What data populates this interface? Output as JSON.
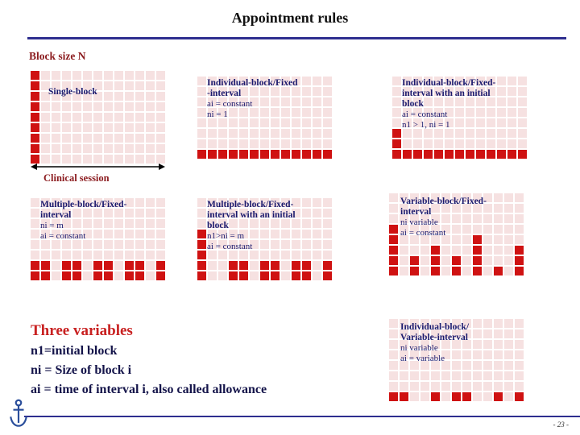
{
  "slide": {
    "title": "Appointment rules",
    "block_size_label": "Block size N",
    "clinical_session_label": "Clinical session",
    "page_number": "- 23 -"
  },
  "colors": {
    "navy": "#1a1a6e",
    "maroon": "#8c1d20",
    "block_red": "#cf1212",
    "slot_pink": "#f6e1e1",
    "heading_red": "#c82121",
    "rule_navy": "#2e2e8f"
  },
  "icons": {
    "logo": "anchor-icon"
  },
  "legend": {
    "heading": "Three variables",
    "lines": [
      "n1=initial block",
      "ni = Size of block i",
      "ai = time of interval i, also called allowance"
    ]
  },
  "panels": [
    {
      "id": "single-block",
      "title_lines": [
        "Single-block"
      ],
      "sub_lines": [],
      "grid": {
        "cols": 13,
        "rows": 9,
        "filled": [
          [
            0,
            0
          ],
          [
            0,
            1
          ],
          [
            0,
            2
          ],
          [
            0,
            3
          ],
          [
            0,
            4
          ],
          [
            0,
            5
          ],
          [
            0,
            6
          ],
          [
            0,
            7
          ],
          [
            0,
            8
          ]
        ]
      }
    },
    {
      "id": "individual-block-fixed-interval",
      "title_lines": [
        "Individual-block/Fixed",
        "-interval"
      ],
      "sub_lines": [
        "ai = constant",
        "ni = 1"
      ],
      "grid": {
        "cols": 13,
        "rows": 8,
        "filled": [
          [
            0,
            7
          ],
          [
            1,
            7
          ],
          [
            2,
            7
          ],
          [
            3,
            7
          ],
          [
            4,
            7
          ],
          [
            5,
            7
          ],
          [
            6,
            7
          ],
          [
            7,
            7
          ],
          [
            8,
            7
          ],
          [
            9,
            7
          ],
          [
            10,
            7
          ],
          [
            11,
            7
          ],
          [
            12,
            7
          ]
        ]
      }
    },
    {
      "id": "individual-block-fixed-interval-initial-block",
      "title_lines": [
        "Individual-block/Fixed-",
        "interval with an initial",
        "block"
      ],
      "sub_lines": [
        "ai = constant",
        "n1 > 1, ni = 1"
      ],
      "grid": {
        "cols": 13,
        "rows": 8,
        "filled": [
          [
            0,
            5
          ],
          [
            0,
            6
          ],
          [
            0,
            7
          ],
          [
            1,
            7
          ],
          [
            2,
            7
          ],
          [
            3,
            7
          ],
          [
            4,
            7
          ],
          [
            5,
            7
          ],
          [
            6,
            7
          ],
          [
            7,
            7
          ],
          [
            8,
            7
          ],
          [
            9,
            7
          ],
          [
            10,
            7
          ],
          [
            11,
            7
          ],
          [
            12,
            7
          ]
        ]
      }
    },
    {
      "id": "multiple-block-fixed-interval",
      "title_lines": [
        "Multiple-block/Fixed-",
        "interval"
      ],
      "sub_lines": [
        "ni = m",
        "ai = constant"
      ],
      "grid": {
        "cols": 13,
        "rows": 8,
        "filled": [
          [
            0,
            6
          ],
          [
            1,
            6
          ],
          [
            0,
            7
          ],
          [
            1,
            7
          ],
          [
            3,
            6
          ],
          [
            4,
            6
          ],
          [
            3,
            7
          ],
          [
            4,
            7
          ],
          [
            6,
            6
          ],
          [
            7,
            6
          ],
          [
            6,
            7
          ],
          [
            7,
            7
          ],
          [
            9,
            6
          ],
          [
            10,
            6
          ],
          [
            9,
            7
          ],
          [
            10,
            7
          ],
          [
            12,
            6
          ],
          [
            12,
            7
          ]
        ]
      }
    },
    {
      "id": "multiple-block-fixed-interval-initial-block",
      "title_lines": [
        "Multiple-block/Fixed-",
        "interval with an initial",
        "block"
      ],
      "sub_lines": [
        "n1>ni = m",
        "ai = constant"
      ],
      "grid": {
        "cols": 13,
        "rows": 8,
        "filled": [
          [
            0,
            3
          ],
          [
            0,
            4
          ],
          [
            0,
            5
          ],
          [
            0,
            6
          ],
          [
            0,
            7
          ],
          [
            3,
            6
          ],
          [
            4,
            6
          ],
          [
            3,
            7
          ],
          [
            4,
            7
          ],
          [
            6,
            6
          ],
          [
            7,
            6
          ],
          [
            6,
            7
          ],
          [
            7,
            7
          ],
          [
            9,
            6
          ],
          [
            10,
            6
          ],
          [
            9,
            7
          ],
          [
            10,
            7
          ],
          [
            12,
            6
          ],
          [
            12,
            7
          ]
        ]
      }
    },
    {
      "id": "variable-block-fixed-interval",
      "title_lines": [
        "Variable-block/Fixed-",
        "interval"
      ],
      "sub_lines": [
        "ni variable",
        "ai = constant"
      ],
      "grid": {
        "cols": 13,
        "rows": 8,
        "filled": [
          [
            0,
            3
          ],
          [
            0,
            4
          ],
          [
            0,
            5
          ],
          [
            0,
            6
          ],
          [
            0,
            7
          ],
          [
            2,
            6
          ],
          [
            2,
            7
          ],
          [
            4,
            5
          ],
          [
            4,
            6
          ],
          [
            4,
            7
          ],
          [
            6,
            6
          ],
          [
            6,
            7
          ],
          [
            8,
            4
          ],
          [
            8,
            5
          ],
          [
            8,
            6
          ],
          [
            8,
            7
          ],
          [
            10,
            7
          ],
          [
            12,
            5
          ],
          [
            12,
            6
          ],
          [
            12,
            7
          ]
        ]
      }
    },
    {
      "id": "individual-block-variable-interval",
      "title_lines": [
        "Individual-block/",
        "Variable-interval"
      ],
      "sub_lines": [
        "ni variable",
        "ai = variable"
      ],
      "grid": {
        "cols": 13,
        "rows": 8,
        "filled": [
          [
            0,
            7
          ],
          [
            1,
            7
          ],
          [
            4,
            7
          ],
          [
            6,
            7
          ],
          [
            7,
            7
          ],
          [
            10,
            7
          ],
          [
            12,
            7
          ]
        ]
      }
    }
  ]
}
